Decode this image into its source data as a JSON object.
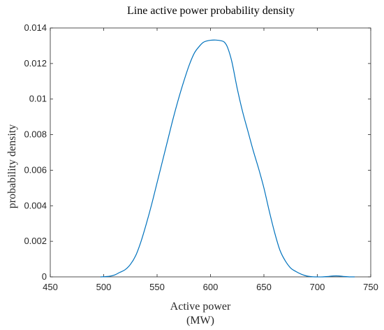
{
  "chart_data": {
    "type": "line",
    "title": "Line active power probability density",
    "xlabel_line1": "Active power",
    "xlabel_line2": "(MW)",
    "ylabel": "probability density",
    "xlim": [
      450,
      750
    ],
    "ylim": [
      0,
      0.014
    ],
    "x_ticks": [
      "450",
      "500",
      "550",
      "600",
      "650",
      "700",
      "750"
    ],
    "y_ticks": [
      "0",
      "0.002",
      "0.004",
      "0.006",
      "0.008",
      "0.01",
      "0.012",
      "0.014"
    ],
    "grid": false,
    "line_color": "#0072BD",
    "series": [
      {
        "x": [
          497,
          505,
          510,
          515,
          520,
          525,
          530,
          535,
          540,
          545,
          550,
          555,
          560,
          565,
          570,
          575,
          580,
          585,
          590,
          593,
          596,
          600,
          605,
          610,
          613,
          616,
          620,
          625,
          630,
          635,
          640,
          645,
          650,
          655,
          660,
          665,
          670,
          675,
          680,
          685,
          690,
          695,
          700,
          705,
          710,
          715,
          720,
          725,
          730,
          735
        ],
        "y": [
          0,
          3e-05,
          0.0001,
          0.00025,
          0.0004,
          0.0007,
          0.0012,
          0.002,
          0.003,
          0.0041,
          0.0053,
          0.0065,
          0.0077,
          0.0089,
          0.01,
          0.011,
          0.0119,
          0.0126,
          0.013,
          0.01318,
          0.01326,
          0.01331,
          0.01332,
          0.01328,
          0.0132,
          0.0129,
          0.0121,
          0.0106,
          0.0093,
          0.0082,
          0.0071,
          0.0061,
          0.005,
          0.0037,
          0.0025,
          0.0015,
          0.0009,
          0.0005,
          0.0003,
          0.00015,
          5e-05,
          1e-05,
          0,
          0,
          2e-05,
          5e-05,
          5e-05,
          2e-05,
          0,
          0
        ]
      }
    ]
  }
}
